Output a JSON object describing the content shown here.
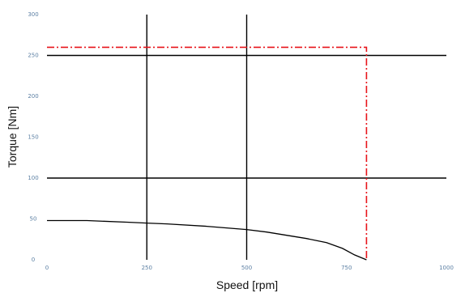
{
  "chart_data": {
    "type": "line",
    "xlabel": "Speed [rpm]",
    "ylabel": "Torque [Nm]",
    "xlim": [
      0,
      1000
    ],
    "ylim": [
      0,
      300
    ],
    "x_ticks": [
      0,
      250,
      500,
      750,
      1000
    ],
    "x_tick_labels": [
      "0",
      "250",
      "500",
      "750",
      "1000"
    ],
    "y_ticks": [
      0,
      50,
      100,
      150,
      200,
      250,
      300
    ],
    "y_tick_labels": [
      "0",
      "50",
      "100",
      "150",
      "200",
      "250",
      "300"
    ],
    "grid": false,
    "reference_lines": {
      "horizontal": [
        100,
        250
      ],
      "vertical": [
        250,
        500
      ],
      "color": "#000000"
    },
    "series": [
      {
        "style": "solid",
        "color": "#000000",
        "x": [
          0,
          100,
          200,
          250,
          300,
          400,
          500,
          550,
          600,
          650,
          700,
          740,
          770,
          800
        ],
        "y": [
          48,
          48,
          46,
          45,
          44,
          41,
          37,
          34,
          30,
          26,
          21,
          14,
          6,
          0
        ]
      },
      {
        "style": "dash-dot",
        "color": "#e8151b",
        "x": [
          0,
          800,
          800
        ],
        "y": [
          260,
          260,
          0
        ]
      }
    ]
  }
}
